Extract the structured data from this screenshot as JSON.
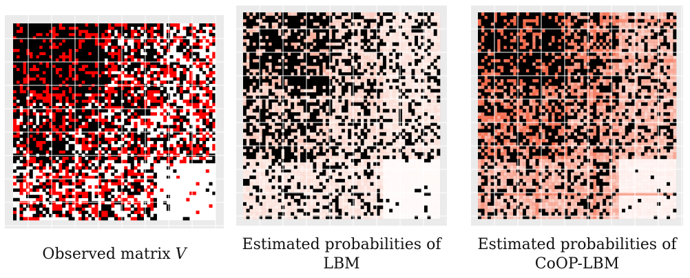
{
  "chart_data": [
    {
      "type": "heatmap",
      "title": "",
      "xlabel": "",
      "ylabel": "",
      "caption_text": "Observed matrix ",
      "caption_math": "V",
      "colors": {
        "observed": "#000000",
        "missing": "#ff0000",
        "empty": "#ffffff"
      },
      "grid": true
    },
    {
      "type": "heatmap",
      "title": "",
      "xlabel": "",
      "ylabel": "",
      "caption_line1": "Estimated probabilities of",
      "caption_line2": "LBM",
      "colors": {
        "observed": "#000000",
        "high": "#f6a58f",
        "low": "#ffffff"
      },
      "grid": true
    },
    {
      "type": "heatmap",
      "title": "",
      "xlabel": "",
      "ylabel": "",
      "caption_line1": "Estimated probabilities of",
      "caption_line2": "CoOP-LBM",
      "colors": {
        "observed": "#000000",
        "high": "#f2694a",
        "low": "#ffffff"
      },
      "grid": true
    }
  ],
  "style": {
    "panel_bg": "#ebebeb",
    "grid_color": "#ffffff"
  }
}
